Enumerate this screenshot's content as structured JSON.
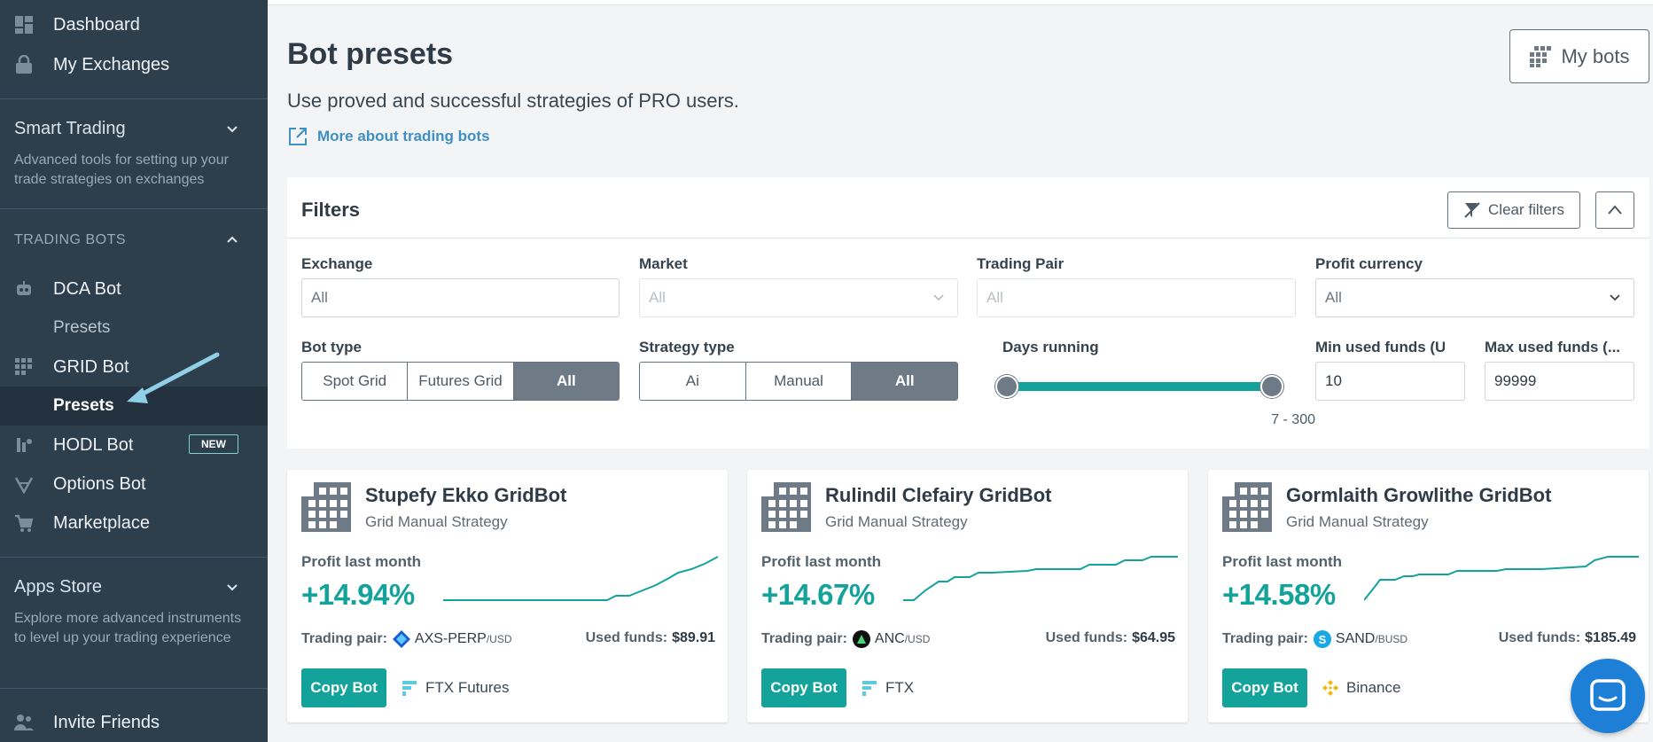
{
  "sidebar": {
    "dashboard": "Dashboard",
    "my_exchanges": "My Exchanges",
    "smart_trading": {
      "title": "Smart Trading",
      "desc": "Advanced tools for setting up your trade strategies on exchanges"
    },
    "trading_bots_caption": "TRADING BOTS",
    "dca_bot": "DCA Bot",
    "dca_presets": "Presets",
    "grid_bot": "GRID Bot",
    "grid_presets": "Presets",
    "hodl_bot": "HODL Bot",
    "hodl_badge": "NEW",
    "options_bot": "Options Bot",
    "marketplace": "Marketplace",
    "apps_store": {
      "title": "Apps Store",
      "desc": "Explore more advanced instruments to level up your trading experience"
    },
    "invite_friends": "Invite Friends",
    "active_item": "grid_presets"
  },
  "header": {
    "title": "Bot presets",
    "subtitle": "Use proved and successful strategies of PRO users.",
    "more_link": "More about trading bots",
    "my_bots_label": "My bots"
  },
  "filters": {
    "title": "Filters",
    "clear_label": "Clear filters",
    "exchange": {
      "label": "Exchange",
      "placeholder": "All"
    },
    "market": {
      "label": "Market",
      "placeholder": "All"
    },
    "trading_pair": {
      "label": "Trading Pair",
      "placeholder": "All"
    },
    "profit_currency": {
      "label": "Profit currency",
      "value": "All"
    },
    "bot_type": {
      "label": "Bot type",
      "options": [
        "Spot Grid",
        "Futures Grid",
        "All"
      ],
      "selected": "All"
    },
    "strategy_type": {
      "label": "Strategy type",
      "options": [
        "Ai",
        "Manual",
        "All"
      ],
      "selected": "All"
    },
    "days_running": {
      "label": "Days running",
      "min": 7,
      "max": 300,
      "range_text": "7 - 300"
    },
    "min_used_funds": {
      "label": "Min used funds (U...",
      "value": "10"
    },
    "max_used_funds": {
      "label": "Max used funds (...",
      "value": "99999"
    }
  },
  "cards": [
    {
      "name": "Stupefy Ekko GridBot",
      "strategy": "Grid Manual Strategy",
      "profit_label": "Profit last month",
      "profit": "+14.94%",
      "trading_pair_label": "Trading pair:",
      "pair_base": "AXS-PERP",
      "pair_quote": "/USD",
      "coin_color": "#1a5bd6",
      "used_funds_label": "Used funds:",
      "used_funds": "$89.91",
      "copy_label": "Copy Bot",
      "exchange": "FTX Futures",
      "exchange_icon": "ftx-icon"
    },
    {
      "name": "Rulindil Clefairy GridBot",
      "strategy": "Grid Manual Strategy",
      "profit_label": "Profit last month",
      "profit": "+14.67%",
      "trading_pair_label": "Trading pair:",
      "pair_base": "ANC",
      "pair_quote": "/USD",
      "coin_color": "#111111",
      "used_funds_label": "Used funds:",
      "used_funds": "$64.95",
      "copy_label": "Copy Bot",
      "exchange": "FTX",
      "exchange_icon": "ftx-icon"
    },
    {
      "name": "Gormlaith Growlithe GridBot",
      "strategy": "Grid Manual Strategy",
      "profit_label": "Profit last month",
      "profit": "+14.58%",
      "trading_pair_label": "Trading pair:",
      "pair_base": "SAND",
      "pair_quote": "/BUSD",
      "coin_color": "#19a7e6",
      "used_funds_label": "Used funds:",
      "used_funds": "$185.49",
      "copy_label": "Copy Bot",
      "exchange": "Binance",
      "exchange_icon": "binance-icon"
    }
  ],
  "colors": {
    "accent": "#14a39a",
    "sidebar": "#2d3e4d",
    "link": "#3f8fc4",
    "chat": "#1e7fd6"
  }
}
